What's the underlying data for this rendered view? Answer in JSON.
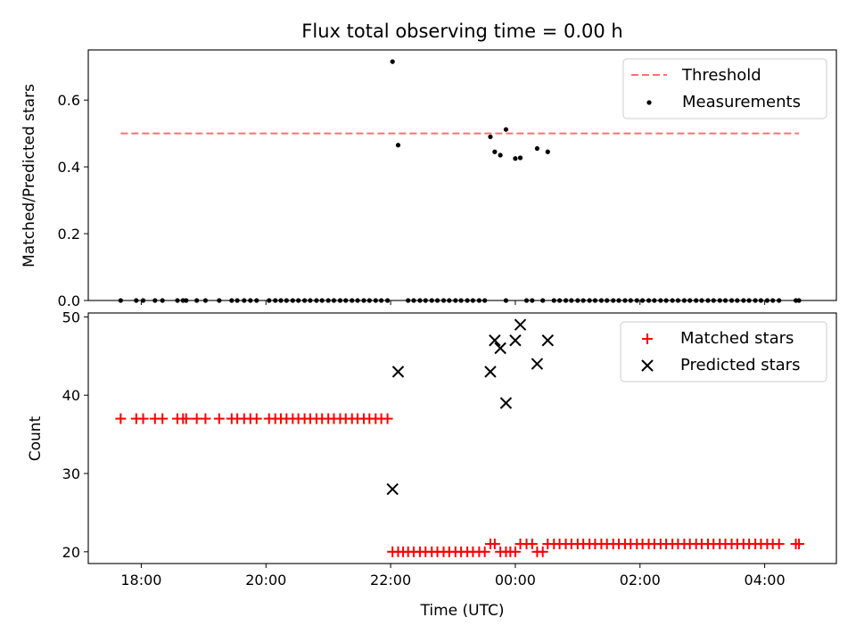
{
  "chart_data": [
    {
      "type": "scatter",
      "title": "Flux total observing time = 0.00 h",
      "xlabel": "",
      "ylabel": "Matched/Predicted stars",
      "ylim": [
        0,
        0.75
      ],
      "yticks": [
        0.0,
        0.2,
        0.4,
        0.6
      ],
      "ytick_labels": [
        "0.0",
        "0.2",
        "0.4",
        "0.6"
      ],
      "legend_position": "top-right",
      "threshold": {
        "name": "Threshold",
        "value": 0.5,
        "color": "#ff7070",
        "style": "dashed",
        "x_range_h": [
          -6.33,
          4.55
        ]
      },
      "series": [
        {
          "name": "Measurements",
          "color": "#000000",
          "marker": "dot",
          "points": [
            [
              -6.33,
              0
            ],
            [
              -6.08,
              0
            ],
            [
              -5.97,
              0
            ],
            [
              -5.78,
              0
            ],
            [
              -5.66,
              0
            ],
            [
              -5.42,
              0
            ],
            [
              -5.33,
              0
            ],
            [
              -5.28,
              0
            ],
            [
              -5.11,
              0
            ],
            [
              -4.97,
              0
            ],
            [
              -4.75,
              0
            ],
            [
              -4.55,
              0
            ],
            [
              -4.46,
              0
            ],
            [
              -4.35,
              0
            ],
            [
              -4.25,
              0
            ],
            [
              -4.15,
              0
            ],
            [
              -3.95,
              0
            ],
            [
              -3.85,
              0
            ],
            [
              -3.76,
              0
            ],
            [
              -3.67,
              0
            ],
            [
              -3.57,
              0
            ],
            [
              -3.48,
              0
            ],
            [
              -3.38,
              0
            ],
            [
              -3.29,
              0
            ],
            [
              -3.19,
              0
            ],
            [
              -3.1,
              0
            ],
            [
              -3.0,
              0
            ],
            [
              -2.91,
              0
            ],
            [
              -2.81,
              0
            ],
            [
              -2.72,
              0
            ],
            [
              -2.62,
              0
            ],
            [
              -2.53,
              0
            ],
            [
              -2.43,
              0
            ],
            [
              -2.34,
              0
            ],
            [
              -2.24,
              0
            ],
            [
              -2.15,
              0
            ],
            [
              -2.05,
              0
            ],
            [
              -1.97,
              0.715
            ],
            [
              -1.88,
              0.465
            ],
            [
              -1.72,
              0
            ],
            [
              -1.63,
              0
            ],
            [
              -1.53,
              0
            ],
            [
              -1.44,
              0
            ],
            [
              -1.34,
              0
            ],
            [
              -1.25,
              0
            ],
            [
              -1.15,
              0
            ],
            [
              -1.06,
              0
            ],
            [
              -0.96,
              0
            ],
            [
              -0.87,
              0
            ],
            [
              -0.77,
              0
            ],
            [
              -0.68,
              0
            ],
            [
              -0.58,
              0
            ],
            [
              -0.49,
              0
            ],
            [
              -0.4,
              0.49
            ],
            [
              -0.33,
              0.445
            ],
            [
              -0.24,
              0.435
            ],
            [
              -0.15,
              0.512
            ],
            [
              -0.15,
              0
            ],
            [
              0.0,
              0.425
            ],
            [
              0.08,
              0.427
            ],
            [
              0.18,
              0
            ],
            [
              0.27,
              0
            ],
            [
              0.35,
              0.455
            ],
            [
              0.44,
              0
            ],
            [
              0.52,
              0.445
            ],
            [
              0.62,
              0
            ],
            [
              0.71,
              0
            ],
            [
              0.81,
              0
            ],
            [
              0.9,
              0
            ],
            [
              1.0,
              0
            ],
            [
              1.09,
              0
            ],
            [
              1.19,
              0
            ],
            [
              1.28,
              0
            ],
            [
              1.38,
              0
            ],
            [
              1.47,
              0
            ],
            [
              1.57,
              0
            ],
            [
              1.66,
              0
            ],
            [
              1.76,
              0
            ],
            [
              1.85,
              0
            ],
            [
              1.95,
              0
            ],
            [
              2.04,
              0
            ],
            [
              2.14,
              0
            ],
            [
              2.23,
              0
            ],
            [
              2.33,
              0
            ],
            [
              2.42,
              0
            ],
            [
              2.52,
              0
            ],
            [
              2.61,
              0
            ],
            [
              2.71,
              0
            ],
            [
              2.8,
              0
            ],
            [
              2.9,
              0
            ],
            [
              2.99,
              0
            ],
            [
              3.09,
              0
            ],
            [
              3.18,
              0
            ],
            [
              3.28,
              0
            ],
            [
              3.37,
              0
            ],
            [
              3.47,
              0
            ],
            [
              3.56,
              0
            ],
            [
              3.66,
              0
            ],
            [
              3.75,
              0
            ],
            [
              3.85,
              0
            ],
            [
              3.94,
              0
            ],
            [
              4.04,
              0
            ],
            [
              4.13,
              0
            ],
            [
              4.23,
              0
            ],
            [
              4.5,
              0
            ],
            [
              4.55,
              0
            ]
          ]
        }
      ]
    },
    {
      "type": "scatter",
      "title": "",
      "xlabel": "Time (UTC)",
      "ylabel": "Count",
      "ylim": [
        18.5,
        50.5
      ],
      "yticks": [
        20,
        30,
        40,
        50
      ],
      "ytick_labels": [
        "20",
        "30",
        "40",
        "50"
      ],
      "xlim_h": [
        -6.85,
        5.15
      ],
      "xticks_h": [
        -6,
        -4,
        -2,
        0,
        2,
        4
      ],
      "xtick_labels": [
        "18:00",
        "20:00",
        "22:00",
        "00:00",
        "02:00",
        "04:00"
      ],
      "legend_position": "top-right",
      "series": [
        {
          "name": "Matched stars",
          "color": "#ff0000",
          "marker": "plus",
          "points": [
            [
              -6.33,
              37
            ],
            [
              -6.08,
              37
            ],
            [
              -5.97,
              37
            ],
            [
              -5.78,
              37
            ],
            [
              -5.66,
              37
            ],
            [
              -5.42,
              37
            ],
            [
              -5.33,
              37
            ],
            [
              -5.28,
              37
            ],
            [
              -5.11,
              37
            ],
            [
              -4.97,
              37
            ],
            [
              -4.75,
              37
            ],
            [
              -4.55,
              37
            ],
            [
              -4.46,
              37
            ],
            [
              -4.35,
              37
            ],
            [
              -4.25,
              37
            ],
            [
              -4.15,
              37
            ],
            [
              -3.95,
              37
            ],
            [
              -3.85,
              37
            ],
            [
              -3.76,
              37
            ],
            [
              -3.67,
              37
            ],
            [
              -3.57,
              37
            ],
            [
              -3.48,
              37
            ],
            [
              -3.38,
              37
            ],
            [
              -3.29,
              37
            ],
            [
              -3.19,
              37
            ],
            [
              -3.1,
              37
            ],
            [
              -3.0,
              37
            ],
            [
              -2.91,
              37
            ],
            [
              -2.81,
              37
            ],
            [
              -2.72,
              37
            ],
            [
              -2.62,
              37
            ],
            [
              -2.53,
              37
            ],
            [
              -2.43,
              37
            ],
            [
              -2.34,
              37
            ],
            [
              -2.24,
              37
            ],
            [
              -2.15,
              37
            ],
            [
              -2.05,
              37
            ],
            [
              -1.97,
              20
            ],
            [
              -1.88,
              20
            ],
            [
              -1.8,
              20
            ],
            [
              -1.72,
              20
            ],
            [
              -1.63,
              20
            ],
            [
              -1.53,
              20
            ],
            [
              -1.44,
              20
            ],
            [
              -1.34,
              20
            ],
            [
              -1.25,
              20
            ],
            [
              -1.15,
              20
            ],
            [
              -1.06,
              20
            ],
            [
              -0.96,
              20
            ],
            [
              -0.87,
              20
            ],
            [
              -0.77,
              20
            ],
            [
              -0.68,
              20
            ],
            [
              -0.58,
              20
            ],
            [
              -0.49,
              20
            ],
            [
              -0.4,
              21
            ],
            [
              -0.33,
              21
            ],
            [
              -0.24,
              20
            ],
            [
              -0.15,
              20
            ],
            [
              -0.08,
              20
            ],
            [
              0.0,
              20
            ],
            [
              0.08,
              21
            ],
            [
              0.18,
              21
            ],
            [
              0.27,
              21
            ],
            [
              0.35,
              20
            ],
            [
              0.44,
              20
            ],
            [
              0.52,
              21
            ],
            [
              0.62,
              21
            ],
            [
              0.71,
              21
            ],
            [
              0.81,
              21
            ],
            [
              0.9,
              21
            ],
            [
              1.0,
              21
            ],
            [
              1.09,
              21
            ],
            [
              1.19,
              21
            ],
            [
              1.28,
              21
            ],
            [
              1.38,
              21
            ],
            [
              1.47,
              21
            ],
            [
              1.57,
              21
            ],
            [
              1.66,
              21
            ],
            [
              1.76,
              21
            ],
            [
              1.85,
              21
            ],
            [
              1.95,
              21
            ],
            [
              2.04,
              21
            ],
            [
              2.14,
              21
            ],
            [
              2.23,
              21
            ],
            [
              2.33,
              21
            ],
            [
              2.42,
              21
            ],
            [
              2.52,
              21
            ],
            [
              2.61,
              21
            ],
            [
              2.71,
              21
            ],
            [
              2.8,
              21
            ],
            [
              2.9,
              21
            ],
            [
              2.99,
              21
            ],
            [
              3.09,
              21
            ],
            [
              3.18,
              21
            ],
            [
              3.28,
              21
            ],
            [
              3.37,
              21
            ],
            [
              3.47,
              21
            ],
            [
              3.56,
              21
            ],
            [
              3.66,
              21
            ],
            [
              3.75,
              21
            ],
            [
              3.85,
              21
            ],
            [
              3.94,
              21
            ],
            [
              4.04,
              21
            ],
            [
              4.13,
              21
            ],
            [
              4.23,
              21
            ],
            [
              4.5,
              21
            ],
            [
              4.55,
              21
            ]
          ]
        },
        {
          "name": "Predicted stars",
          "color": "#000000",
          "marker": "x",
          "points": [
            [
              -1.97,
              28
            ],
            [
              -1.88,
              43
            ],
            [
              -0.4,
              43
            ],
            [
              -0.33,
              47
            ],
            [
              -0.24,
              46
            ],
            [
              -0.15,
              39
            ],
            [
              0.0,
              47
            ],
            [
              0.08,
              49
            ],
            [
              0.35,
              44
            ],
            [
              0.52,
              47
            ]
          ]
        }
      ]
    }
  ]
}
